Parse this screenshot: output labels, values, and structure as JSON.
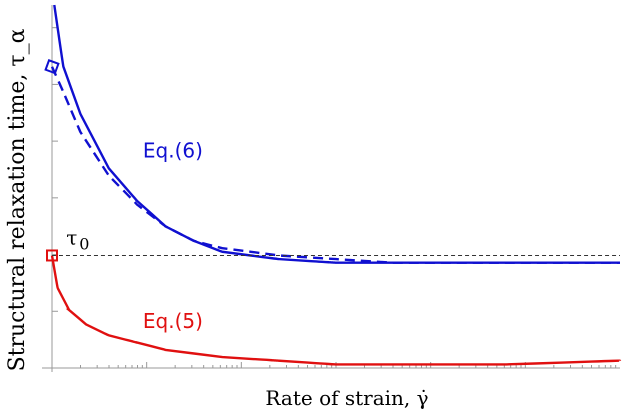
{
  "chart_data": {
    "type": "line",
    "xlabel": "Rate of strain, γ̇",
    "ylabel": "Structural relaxation time, τ_α",
    "xscale": "log",
    "xlim": [
      0,
      1
    ],
    "ylim": [
      0,
      1
    ],
    "grid": false,
    "axis_ticks": "unlabeled",
    "colors": {
      "eq6": "#1010d0",
      "eq5": "#e01010",
      "reference": "#333333"
    },
    "series": [
      {
        "key": "eq6_solid",
        "style": "solid",
        "color": "#1010d0",
        "x": [
          0.004,
          0.02,
          0.05,
          0.1,
          0.15,
          0.2,
          0.25,
          0.3,
          0.4,
          0.5,
          0.6,
          0.7,
          0.8,
          0.9,
          1.0
        ],
        "y": [
          1.0,
          0.83,
          0.7,
          0.55,
          0.46,
          0.39,
          0.35,
          0.32,
          0.3,
          0.29,
          0.29,
          0.29,
          0.29,
          0.29,
          0.29
        ]
      },
      {
        "key": "eq6_dashed",
        "style": "dashed",
        "color": "#1010d0",
        "x": [
          0.0,
          0.02,
          0.05,
          0.1,
          0.15,
          0.2,
          0.25,
          0.3,
          0.4,
          0.5,
          0.6,
          0.7,
          0.8,
          0.9,
          1.0
        ],
        "y": [
          0.83,
          0.76,
          0.65,
          0.53,
          0.45,
          0.39,
          0.35,
          0.33,
          0.31,
          0.3,
          0.29,
          0.29,
          0.29,
          0.29,
          0.29
        ]
      },
      {
        "key": "eq5_solid",
        "style": "solid",
        "color": "#e01010",
        "x": [
          0.0,
          0.01,
          0.03,
          0.06,
          0.1,
          0.15,
          0.2,
          0.3,
          0.4,
          0.5,
          0.6,
          0.7,
          0.8,
          0.9,
          1.0
        ],
        "y": [
          0.31,
          0.22,
          0.16,
          0.12,
          0.09,
          0.07,
          0.05,
          0.03,
          0.02,
          0.01,
          0.01,
          0.01,
          0.01,
          0.015,
          0.02
        ]
      },
      {
        "key": "tau0_reference",
        "style": "dashed-thin",
        "color": "#333333",
        "x": [
          0.0,
          1.0
        ],
        "y": [
          0.31,
          0.31
        ]
      }
    ],
    "markers": [
      {
        "key": "eq6_start",
        "shape": "diamond",
        "color": "#1010d0",
        "x": 0.0,
        "y": 0.83
      },
      {
        "key": "tau0_point",
        "shape": "square",
        "color": "#e01010",
        "x": 0.0,
        "y": 0.31
      }
    ],
    "annotations": [
      {
        "key": "eq6",
        "text": "Eq.(6)",
        "color": "#1010d0",
        "x": 0.16,
        "y": 0.58
      },
      {
        "key": "eq5",
        "text": "Eq.(5)",
        "color": "#e01010",
        "x": 0.16,
        "y": 0.11
      },
      {
        "key": "tau0",
        "text_main": "τ",
        "text_sub": "0",
        "color": "#000000",
        "x": 0.025,
        "y": 0.34
      }
    ]
  }
}
